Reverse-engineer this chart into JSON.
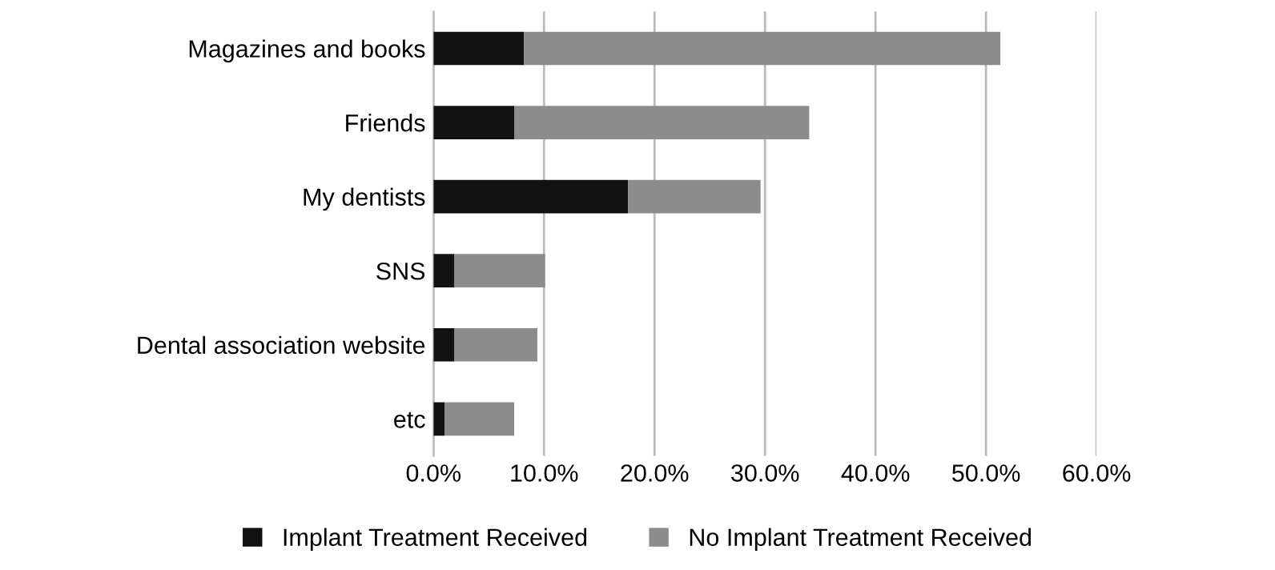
{
  "chart_data": {
    "type": "bar",
    "orientation": "horizontal",
    "stacked": true,
    "categories": [
      "Magazines and books",
      "Friends",
      "My dentists",
      "SNS",
      "Dental association website",
      "etc"
    ],
    "series": [
      {
        "name": "Implant Treatment Received",
        "color": "#111111",
        "values": [
          8.2,
          7.3,
          17.6,
          1.9,
          1.9,
          1.0
        ]
      },
      {
        "name": "No Implant Treatment Received",
        "color": "#8c8c8c",
        "values": [
          43.1,
          26.7,
          12.0,
          8.2,
          7.5,
          6.3
        ]
      }
    ],
    "xlim": [
      0,
      60
    ],
    "xticks": [
      {
        "value": 0,
        "label": "0.0%"
      },
      {
        "value": 10,
        "label": "10.0%"
      },
      {
        "value": 20,
        "label": "20.0%"
      },
      {
        "value": 30,
        "label": "30.0%"
      },
      {
        "value": 40,
        "label": "40.0%"
      },
      {
        "value": 50,
        "label": "50.0%"
      },
      {
        "value": 60,
        "label": "60.0%"
      }
    ],
    "grid": "x",
    "legend": "bottom"
  }
}
